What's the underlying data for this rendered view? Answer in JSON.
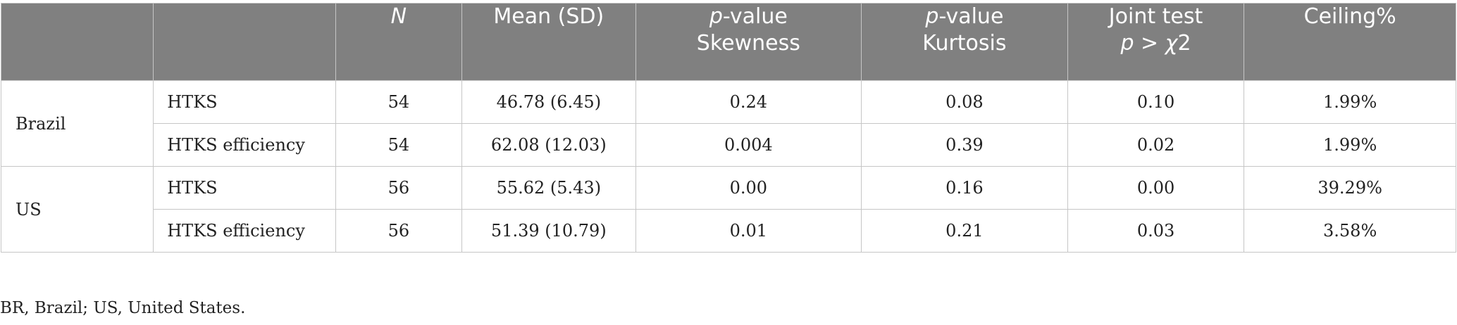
{
  "headers": {
    "blank1": "",
    "blank2": "",
    "n": "N",
    "mean_sd": "Mean (SD)",
    "skew_line1_italic": "p",
    "skew_line1_rest": "-value",
    "skew_line2": "Skewness",
    "kurt_line1_italic": "p",
    "kurt_line1_rest": "-value",
    "kurt_line2": "Kurtosis",
    "joint_line1": "Joint test",
    "joint_line2_italic_p": "p",
    "joint_line2_gt": " > ",
    "joint_line2_italic_chi": "χ",
    "joint_line2_rest": "2",
    "ceiling": "Ceiling%"
  },
  "groups": [
    {
      "country": "Brazil",
      "rows": [
        {
          "measure": "HTKS",
          "n": "54",
          "mean_sd": "46.78 (6.45)",
          "p_skew": "0.24",
          "p_kurt": "0.08",
          "joint": "0.10",
          "ceiling": "1.99%"
        },
        {
          "measure": "HTKS efficiency",
          "n": "54",
          "mean_sd": "62.08 (12.03)",
          "p_skew": "0.004",
          "p_kurt": "0.39",
          "joint": "0.02",
          "ceiling": "1.99%"
        }
      ]
    },
    {
      "country": "US",
      "rows": [
        {
          "measure": "HTKS",
          "n": "56",
          "mean_sd": "55.62 (5.43)",
          "p_skew": "0.00",
          "p_kurt": "0.16",
          "joint": "0.00",
          "ceiling": "39.29%"
        },
        {
          "measure": "HTKS efficiency",
          "n": "56",
          "mean_sd": "51.39 (10.79)",
          "p_skew": "0.01",
          "p_kurt": "0.21",
          "joint": "0.03",
          "ceiling": "3.58%"
        }
      ]
    }
  ],
  "footnote": "BR, Brazil; US, United States."
}
